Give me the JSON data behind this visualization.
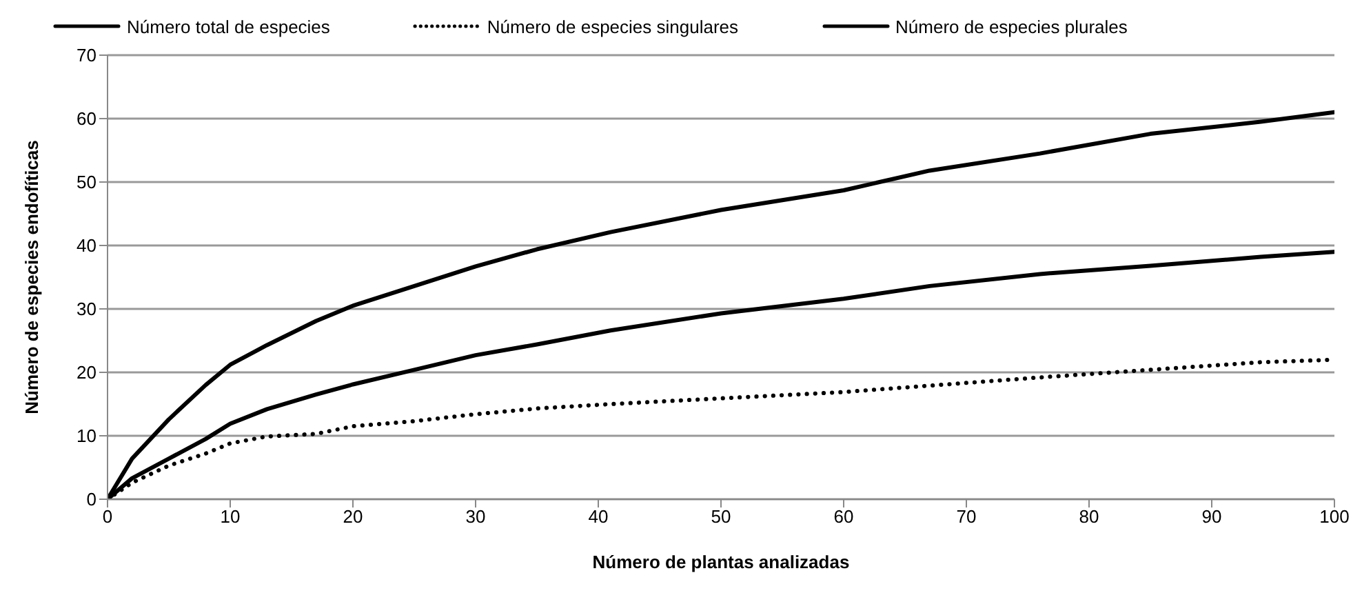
{
  "chart_data": {
    "type": "line",
    "x": [
      0,
      2,
      5,
      8,
      10,
      13,
      17,
      20,
      25,
      30,
      35,
      41,
      50,
      60,
      67,
      76,
      85,
      94,
      100
    ],
    "series": [
      {
        "name": "Número total de especies",
        "color": "#000000",
        "line_style": "solid",
        "values": [
          0,
          6.4,
          12.6,
          18,
          21.2,
          24.3,
          28.1,
          30.5,
          33.6,
          36.7,
          39.4,
          42.1,
          45.6,
          48.7,
          51.8,
          54.5,
          57.6,
          59.5,
          61
        ]
      },
      {
        "name": "Número de especies singulares",
        "color": "#000000",
        "line_style": "dotted",
        "values": [
          0,
          2.6,
          5.3,
          7.2,
          8.8,
          9.9,
          10.3,
          11.5,
          12.3,
          13.4,
          14.3,
          15,
          15.9,
          16.9,
          17.9,
          19.2,
          20.4,
          21.6,
          22
        ]
      },
      {
        "name": "Número de especies plurales",
        "color": "#000000",
        "line_style": "solid",
        "values": [
          0,
          3.3,
          6.4,
          9.5,
          11.9,
          14.2,
          16.5,
          18.1,
          20.4,
          22.7,
          24.4,
          26.6,
          29.3,
          31.6,
          33.6,
          35.5,
          36.8,
          38.2,
          39
        ]
      }
    ],
    "xlabel": "Número de plantas analizadas",
    "ylabel": "Número de especies endofíticas",
    "xlim": [
      0,
      100
    ],
    "xticks": [
      0,
      10,
      20,
      30,
      40,
      50,
      60,
      70,
      80,
      90,
      100
    ],
    "ylim": [
      0,
      70
    ],
    "yticks": [
      0,
      10,
      20,
      30,
      40,
      50,
      60,
      70
    ],
    "grid": "y",
    "legend": "top",
    "marker": "none"
  }
}
